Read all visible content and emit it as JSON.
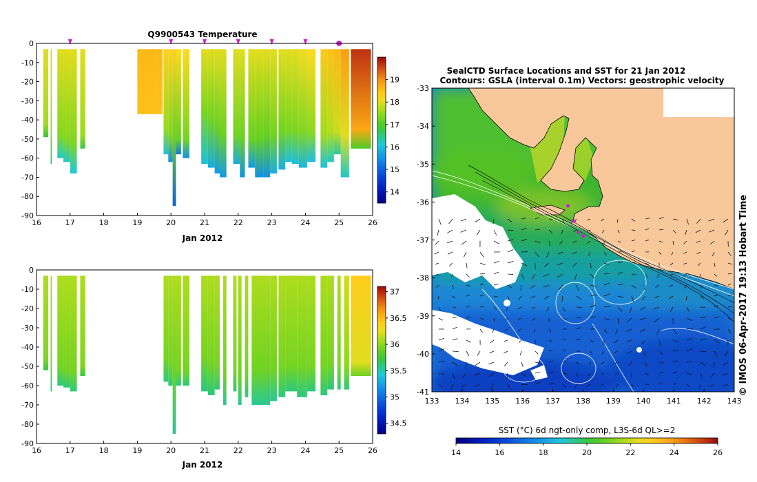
{
  "chart_data": [
    {
      "id": "temperature",
      "type": "heatmap",
      "title": "Q9900543  Temperature",
      "xlabel": "Jan 2012",
      "xlim": [
        16,
        26
      ],
      "ylim": [
        -90,
        0
      ],
      "xticks": [
        "16",
        "17",
        "18",
        "19",
        "20",
        "21",
        "22",
        "23",
        "24",
        "25",
        "26"
      ],
      "yticks": [
        "0",
        "-10",
        "-20",
        "-30",
        "-40",
        "-50",
        "-60",
        "-70",
        "-80",
        "-90"
      ],
      "colorbar": {
        "min": 13.5,
        "max": 20,
        "ticks": [
          "14",
          "15",
          "16",
          "17",
          "18",
          "19"
        ]
      },
      "markers": [
        17.0,
        20.0,
        21.0,
        22.0,
        23.0,
        24.0
      ],
      "highlight_marker": 25.0,
      "profiles": [
        {
          "x0": 16.2,
          "x1": 16.35,
          "depth": 49,
          "top": 18,
          "mld": 42,
          "bottom": 16.8
        },
        {
          "x0": 16.42,
          "x1": 16.46,
          "depth": 63,
          "top": 18,
          "mld": 45,
          "bottom": 16.5
        },
        {
          "x0": 16.62,
          "x1": 16.8,
          "depth": 60,
          "top": 18,
          "mld": 48,
          "bottom": 16.2
        },
        {
          "x0": 16.8,
          "x1": 17.0,
          "depth": 62,
          "top": 18,
          "mld": 50,
          "bottom": 16.2
        },
        {
          "x0": 17.0,
          "x1": 17.2,
          "depth": 68,
          "top": 18,
          "mld": 52,
          "bottom": 16.1
        },
        {
          "x0": 17.3,
          "x1": 17.45,
          "depth": 55,
          "top": 18,
          "mld": 48,
          "bottom": 16.7
        },
        {
          "x0": 19.0,
          "x1": 19.55,
          "depth": 37,
          "top": 18.6,
          "mld": 37,
          "bottom": 18.3
        },
        {
          "x0": 19.55,
          "x1": 19.75,
          "depth": 37,
          "top": 18.6,
          "mld": 37,
          "bottom": 18.3
        },
        {
          "x0": 19.78,
          "x1": 19.92,
          "depth": 58,
          "top": 18.3,
          "mld": 45,
          "bottom": 16.0
        },
        {
          "x0": 19.92,
          "x1": 20.05,
          "depth": 62,
          "top": 18.3,
          "mld": 48,
          "bottom": 15.5
        },
        {
          "x0": 20.05,
          "x1": 20.15,
          "depth": 85,
          "top": 18.3,
          "mld": 50,
          "bottom": 15.0
        },
        {
          "x0": 20.15,
          "x1": 20.3,
          "depth": 58,
          "top": 18.2,
          "mld": 50,
          "bottom": 15.2
        },
        {
          "x0": 20.35,
          "x1": 20.55,
          "depth": 60,
          "top": 18.2,
          "mld": 50,
          "bottom": 15.5
        },
        {
          "x0": 20.9,
          "x1": 21.1,
          "depth": 63,
          "top": 18,
          "mld": 36,
          "bottom": 16.0
        },
        {
          "x0": 21.1,
          "x1": 21.3,
          "depth": 65,
          "top": 18,
          "mld": 40,
          "bottom": 15.8
        },
        {
          "x0": 21.3,
          "x1": 21.45,
          "depth": 68,
          "top": 18,
          "mld": 44,
          "bottom": 15.6
        },
        {
          "x0": 21.45,
          "x1": 21.65,
          "depth": 70,
          "top": 18,
          "mld": 48,
          "bottom": 15.6
        },
        {
          "x0": 21.85,
          "x1": 22.05,
          "depth": 63,
          "top": 18,
          "mld": 48,
          "bottom": 15.8
        },
        {
          "x0": 22.05,
          "x1": 22.2,
          "depth": 70,
          "top": 18,
          "mld": 50,
          "bottom": 15.5
        },
        {
          "x0": 22.3,
          "x1": 22.5,
          "depth": 65,
          "top": 18,
          "mld": 50,
          "bottom": 15.6
        },
        {
          "x0": 22.5,
          "x1": 22.75,
          "depth": 70,
          "top": 18,
          "mld": 50,
          "bottom": 15.5
        },
        {
          "x0": 22.75,
          "x1": 22.95,
          "depth": 70,
          "top": 18,
          "mld": 48,
          "bottom": 15.5
        },
        {
          "x0": 22.95,
          "x1": 23.15,
          "depth": 68,
          "top": 18,
          "mld": 48,
          "bottom": 15.8
        },
        {
          "x0": 23.2,
          "x1": 23.4,
          "depth": 66,
          "top": 18,
          "mld": 46,
          "bottom": 15.8
        },
        {
          "x0": 23.4,
          "x1": 23.6,
          "depth": 62,
          "top": 18,
          "mld": 45,
          "bottom": 16.0
        },
        {
          "x0": 23.6,
          "x1": 23.8,
          "depth": 63,
          "top": 18,
          "mld": 46,
          "bottom": 16.0
        },
        {
          "x0": 23.8,
          "x1": 24.05,
          "depth": 65,
          "top": 18.1,
          "mld": 46,
          "bottom": 15.9
        },
        {
          "x0": 24.05,
          "x1": 24.3,
          "depth": 62,
          "top": 18.2,
          "mld": 46,
          "bottom": 16.0
        },
        {
          "x0": 24.45,
          "x1": 24.65,
          "depth": 65,
          "top": 18.4,
          "mld": 48,
          "bottom": 16.0
        },
        {
          "x0": 24.65,
          "x1": 24.85,
          "depth": 62,
          "top": 18.5,
          "mld": 46,
          "bottom": 16.2
        },
        {
          "x0": 24.85,
          "x1": 25.05,
          "depth": 58,
          "top": 18.6,
          "mld": 46,
          "bottom": 16.4
        },
        {
          "x0": 25.05,
          "x1": 25.3,
          "depth": 70,
          "top": 18.9,
          "mld": 48,
          "bottom": 16.2
        },
        {
          "x0": 25.35,
          "x1": 25.95,
          "depth": 55,
          "top": 19.7,
          "mld": 45,
          "bottom": 17.0
        }
      ]
    },
    {
      "id": "salinity",
      "type": "heatmap",
      "title": "",
      "xlabel": "Jan 2012",
      "xlim": [
        16,
        26
      ],
      "ylim": [
        -90,
        0
      ],
      "xticks": [
        "16",
        "17",
        "18",
        "19",
        "20",
        "21",
        "22",
        "23",
        "24",
        "25",
        "26"
      ],
      "yticks": [
        "0",
        "-10",
        "-20",
        "-30",
        "-40",
        "-50",
        "-60",
        "-70",
        "-80",
        "-90"
      ],
      "colorbar": {
        "min": 34.3,
        "max": 37.1,
        "ticks": [
          "34.5",
          "35",
          "35.5",
          "36",
          "36.5",
          "37"
        ]
      },
      "profiles": [
        {
          "x0": 16.2,
          "x1": 16.35,
          "depth": 52,
          "top": 36.1,
          "mld": 46,
          "bottom": 35.7
        },
        {
          "x0": 16.42,
          "x1": 16.46,
          "depth": 63,
          "top": 36.1,
          "mld": 48,
          "bottom": 35.6
        },
        {
          "x0": 16.62,
          "x1": 16.8,
          "depth": 60,
          "top": 36.1,
          "mld": 50,
          "bottom": 35.6
        },
        {
          "x0": 16.8,
          "x1": 17.0,
          "depth": 61,
          "top": 36.1,
          "mld": 52,
          "bottom": 35.6
        },
        {
          "x0": 17.0,
          "x1": 17.2,
          "depth": 63,
          "top": 36.1,
          "mld": 52,
          "bottom": 35.6
        },
        {
          "x0": 17.3,
          "x1": 17.45,
          "depth": 55,
          "top": 36.1,
          "mld": 50,
          "bottom": 35.7
        },
        {
          "x0": 19.78,
          "x1": 19.92,
          "depth": 58,
          "top": 36.1,
          "mld": 45,
          "bottom": 35.6
        },
        {
          "x0": 19.92,
          "x1": 20.05,
          "depth": 60,
          "top": 36.1,
          "mld": 48,
          "bottom": 35.6
        },
        {
          "x0": 20.05,
          "x1": 20.15,
          "depth": 85,
          "top": 36.1,
          "mld": 52,
          "bottom": 35.55
        },
        {
          "x0": 20.15,
          "x1": 20.3,
          "depth": 60,
          "top": 36.1,
          "mld": 52,
          "bottom": 35.6
        },
        {
          "x0": 20.35,
          "x1": 20.55,
          "depth": 60,
          "top": 36.1,
          "mld": 52,
          "bottom": 35.6
        },
        {
          "x0": 20.9,
          "x1": 21.1,
          "depth": 63,
          "top": 36.1,
          "mld": 45,
          "bottom": 35.6
        },
        {
          "x0": 21.1,
          "x1": 21.3,
          "depth": 65,
          "top": 36.1,
          "mld": 48,
          "bottom": 35.6
        },
        {
          "x0": 21.3,
          "x1": 21.45,
          "depth": 62,
          "top": 36.1,
          "mld": 50,
          "bottom": 35.6
        },
        {
          "x0": 21.55,
          "x1": 21.65,
          "depth": 70,
          "top": 36.1,
          "mld": 55,
          "bottom": 35.55
        },
        {
          "x0": 21.85,
          "x1": 21.95,
          "depth": 63,
          "top": 36.1,
          "mld": 52,
          "bottom": 35.6
        },
        {
          "x0": 22.0,
          "x1": 22.1,
          "depth": 70,
          "top": 36.1,
          "mld": 55,
          "bottom": 35.55
        },
        {
          "x0": 22.2,
          "x1": 22.3,
          "depth": 66,
          "top": 36.1,
          "mld": 53,
          "bottom": 35.6
        },
        {
          "x0": 22.4,
          "x1": 22.95,
          "depth": 70,
          "top": 36.1,
          "mld": 52,
          "bottom": 35.55
        },
        {
          "x0": 22.95,
          "x1": 23.15,
          "depth": 68,
          "top": 36.1,
          "mld": 52,
          "bottom": 35.55
        },
        {
          "x0": 23.2,
          "x1": 23.4,
          "depth": 66,
          "top": 36.1,
          "mld": 50,
          "bottom": 35.6
        },
        {
          "x0": 23.4,
          "x1": 23.75,
          "depth": 63,
          "top": 36.1,
          "mld": 50,
          "bottom": 35.6
        },
        {
          "x0": 23.75,
          "x1": 24.05,
          "depth": 66,
          "top": 36.1,
          "mld": 50,
          "bottom": 35.6
        },
        {
          "x0": 24.05,
          "x1": 24.3,
          "depth": 63,
          "top": 36.1,
          "mld": 50,
          "bottom": 35.6
        },
        {
          "x0": 24.45,
          "x1": 24.65,
          "depth": 65,
          "top": 36.1,
          "mld": 50,
          "bottom": 35.6
        },
        {
          "x0": 24.65,
          "x1": 24.85,
          "depth": 62,
          "top": 36.1,
          "mld": 48,
          "bottom": 35.6
        },
        {
          "x0": 24.95,
          "x1": 25.05,
          "depth": 62,
          "top": 36.1,
          "mld": 50,
          "bottom": 35.6
        },
        {
          "x0": 25.15,
          "x1": 25.3,
          "depth": 62,
          "top": 36.2,
          "mld": 50,
          "bottom": 35.6
        },
        {
          "x0": 25.35,
          "x1": 25.95,
          "depth": 55,
          "top": 36.4,
          "mld": 48,
          "bottom": 35.9
        }
      ]
    },
    {
      "id": "sst-map",
      "type": "heatmap",
      "title": "SealCTD Surface Locations and SST for 21 Jan 2012",
      "subtitle": "Contours: GSLA (interval 0.1m) Vectors: geostrophic velocity",
      "xlim": [
        133,
        143
      ],
      "ylim": [
        -41,
        -33
      ],
      "xticks": [
        "133",
        "134",
        "135",
        "136",
        "137",
        "138",
        "139",
        "140",
        "141",
        "142",
        "143"
      ],
      "yticks": [
        "-33",
        "-34",
        "-35",
        "-36",
        "-37",
        "-38",
        "-39",
        "-40",
        "-41"
      ],
      "colorbar": {
        "label": "SST (°C) 6d ngt-only comp, L3S-6d QL>=2",
        "min": 14,
        "max": 26,
        "ticks": [
          "14",
          "16",
          "18",
          "20",
          "22",
          "24",
          "26"
        ]
      },
      "sealctd_locations": [
        {
          "lon": 137.5,
          "lat": -36.1
        },
        {
          "lon": 137.7,
          "lat": -36.5
        },
        {
          "lon": 137.85,
          "lat": -36.8
        },
        {
          "lon": 138.0,
          "lat": -36.9
        }
      ]
    }
  ],
  "credit": "© IMOS 06-Apr-2017 19:13 Hobart Time",
  "colors": {
    "marker": "#cc22cc",
    "land": "#f9c89a",
    "missing": "#ffffff",
    "frame": "#000000"
  }
}
